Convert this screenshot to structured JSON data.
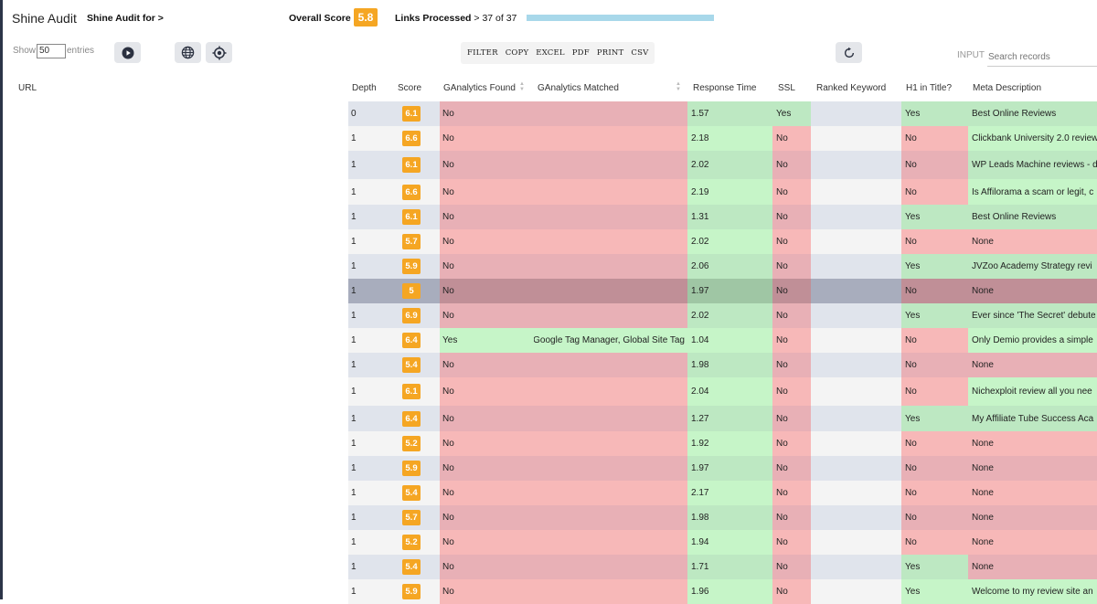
{
  "app": {
    "title": "Shine Audit",
    "audit_for": "Shine Audit for >",
    "overall_score_label": "Overall Score",
    "overall_score": "5.8",
    "links_processed_label": "Links Processed",
    "links_processed_value": "> 37 of 37",
    "progress": 1.0
  },
  "controls": {
    "show_label": "Show",
    "show_value": "50",
    "entries_label": "entries",
    "export_buttons": [
      "FILTER",
      "COPY",
      "EXCEL",
      "PDF",
      "PRINT",
      "CSV"
    ],
    "input_label": "INPUT",
    "search_placeholder": "Search records",
    "icons": [
      "play-icon",
      "globe-icon",
      "target-icon",
      "refresh-icon"
    ]
  },
  "table": {
    "headers": {
      "url": "URL",
      "depth": "Depth",
      "score": "Score",
      "ga_found": "GAnalytics Found",
      "ga_matched": "GAnalytics Matched",
      "response_time": "Response Time",
      "ssl": "SSL",
      "ranked_keyword": "Ranked Keyword",
      "h1_in_title": "H1 in Title?",
      "meta_description": "Meta Description"
    },
    "colors": {
      "green": "#c6f5c8",
      "red": "#f7b8b8",
      "row_tint": "#e0e4ec",
      "selected": "#a8adbd"
    },
    "rows": [
      {
        "depth": "0",
        "score": "6.1",
        "ga_found": "No",
        "ga_matched": "",
        "rt": "1.57",
        "ssl": "Yes",
        "kw": "",
        "h1": "Yes",
        "meta": "Best Online Reviews"
      },
      {
        "depth": "1",
        "score": "6.6",
        "ga_found": "No",
        "ga_matched": "",
        "rt": "2.18",
        "ssl": "No",
        "kw": "",
        "h1": "No",
        "meta": "Clickbank University 2.0 review"
      },
      {
        "depth": "1",
        "score": "6.1",
        "ga_found": "No",
        "ga_matched": "",
        "rt": "2.02",
        "ssl": "No",
        "kw": "",
        "h1": "No",
        "meta": "WP Leads Machine reviews - d"
      },
      {
        "depth": "1",
        "score": "6.6",
        "ga_found": "No",
        "ga_matched": "",
        "rt": "2.19",
        "ssl": "No",
        "kw": "",
        "h1": "No",
        "meta": "Is Affilorama a scam or legit, c"
      },
      {
        "depth": "1",
        "score": "6.1",
        "ga_found": "No",
        "ga_matched": "",
        "rt": "1.31",
        "ssl": "No",
        "kw": "",
        "h1": "Yes",
        "meta": "Best Online Reviews"
      },
      {
        "depth": "1",
        "score": "5.7",
        "ga_found": "No",
        "ga_matched": "",
        "rt": "2.02",
        "ssl": "No",
        "kw": "",
        "h1": "No",
        "meta": "None"
      },
      {
        "depth": "1",
        "score": "5.9",
        "ga_found": "No",
        "ga_matched": "",
        "rt": "2.06",
        "ssl": "No",
        "kw": "",
        "h1": "Yes",
        "meta": "JVZoo Academy Strategy revi"
      },
      {
        "depth": "1",
        "score": "5",
        "ga_found": "No",
        "ga_matched": "",
        "rt": "1.97",
        "ssl": "No",
        "kw": "",
        "h1": "No",
        "meta": "None",
        "selected": true
      },
      {
        "depth": "1",
        "score": "6.9",
        "ga_found": "No",
        "ga_matched": "",
        "rt": "2.02",
        "ssl": "No",
        "kw": "",
        "h1": "Yes",
        "meta": "Ever since 'The Secret' debute"
      },
      {
        "depth": "1",
        "score": "6.4",
        "ga_found": "Yes",
        "ga_matched": "Google Tag Manager, Global Site Tag",
        "rt": "1.04",
        "ssl": "No",
        "kw": "",
        "h1": "No",
        "meta": "Only Demio provides a simple"
      },
      {
        "depth": "1",
        "score": "5.4",
        "ga_found": "No",
        "ga_matched": "",
        "rt": "1.98",
        "ssl": "No",
        "kw": "",
        "h1": "No",
        "meta": "None"
      },
      {
        "depth": "1",
        "score": "6.1",
        "ga_found": "No",
        "ga_matched": "",
        "rt": "2.04",
        "ssl": "No",
        "kw": "",
        "h1": "No",
        "meta": "Nichexploit review all you nee"
      },
      {
        "depth": "1",
        "score": "6.4",
        "ga_found": "No",
        "ga_matched": "",
        "rt": "1.27",
        "ssl": "No",
        "kw": "",
        "h1": "Yes",
        "meta": "My Affiliate Tube Success Aca"
      },
      {
        "depth": "1",
        "score": "5.2",
        "ga_found": "No",
        "ga_matched": "",
        "rt": "1.92",
        "ssl": "No",
        "kw": "",
        "h1": "No",
        "meta": "None"
      },
      {
        "depth": "1",
        "score": "5.9",
        "ga_found": "No",
        "ga_matched": "",
        "rt": "1.97",
        "ssl": "No",
        "kw": "",
        "h1": "No",
        "meta": "None"
      },
      {
        "depth": "1",
        "score": "5.4",
        "ga_found": "No",
        "ga_matched": "",
        "rt": "2.17",
        "ssl": "No",
        "kw": "",
        "h1": "No",
        "meta": "None"
      },
      {
        "depth": "1",
        "score": "5.7",
        "ga_found": "No",
        "ga_matched": "",
        "rt": "1.98",
        "ssl": "No",
        "kw": "",
        "h1": "No",
        "meta": "None"
      },
      {
        "depth": "1",
        "score": "5.2",
        "ga_found": "No",
        "ga_matched": "",
        "rt": "1.94",
        "ssl": "No",
        "kw": "",
        "h1": "No",
        "meta": "None"
      },
      {
        "depth": "1",
        "score": "5.4",
        "ga_found": "No",
        "ga_matched": "",
        "rt": "1.71",
        "ssl": "No",
        "kw": "",
        "h1": "Yes",
        "meta": "None"
      },
      {
        "depth": "1",
        "score": "5.9",
        "ga_found": "No",
        "ga_matched": "",
        "rt": "1.96",
        "ssl": "No",
        "kw": "",
        "h1": "Yes",
        "meta": "Welcome to my review site an"
      }
    ]
  }
}
